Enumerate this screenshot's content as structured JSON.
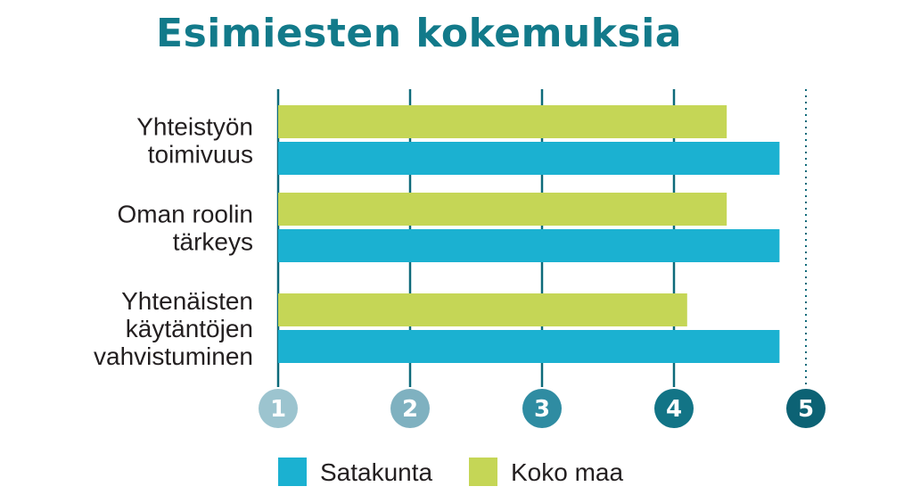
{
  "chart_data": {
    "type": "bar",
    "orientation": "horizontal",
    "title": "Esimiesten kokemuksia",
    "categories": [
      [
        "Yhteistyön",
        "toimivuus"
      ],
      [
        "Oman roolin",
        "tärkeys"
      ],
      [
        "Yhtenäisten",
        "käytäntöjen",
        "vahvistuminen"
      ]
    ],
    "series": [
      {
        "name": "Koko maa",
        "color": "#c5d656",
        "values": [
          4.4,
          4.4,
          4.1
        ]
      },
      {
        "name": "Satakunta",
        "color": "#1bb1d1",
        "values": [
          4.8,
          4.8,
          4.8
        ]
      }
    ],
    "legend_order": [
      "Satakunta",
      "Koko maa"
    ],
    "xlim": [
      1,
      5
    ],
    "xticks": [
      "1",
      "2",
      "3",
      "4",
      "5"
    ],
    "tick_badge_colors": [
      "#9cc4cf",
      "#7fb1c0",
      "#2f8ca2",
      "#127486",
      "#0c6274"
    ],
    "grid": true,
    "legend_position": "bottom",
    "title_color": "#127a8a",
    "axis_color": "#0e6a7a"
  }
}
